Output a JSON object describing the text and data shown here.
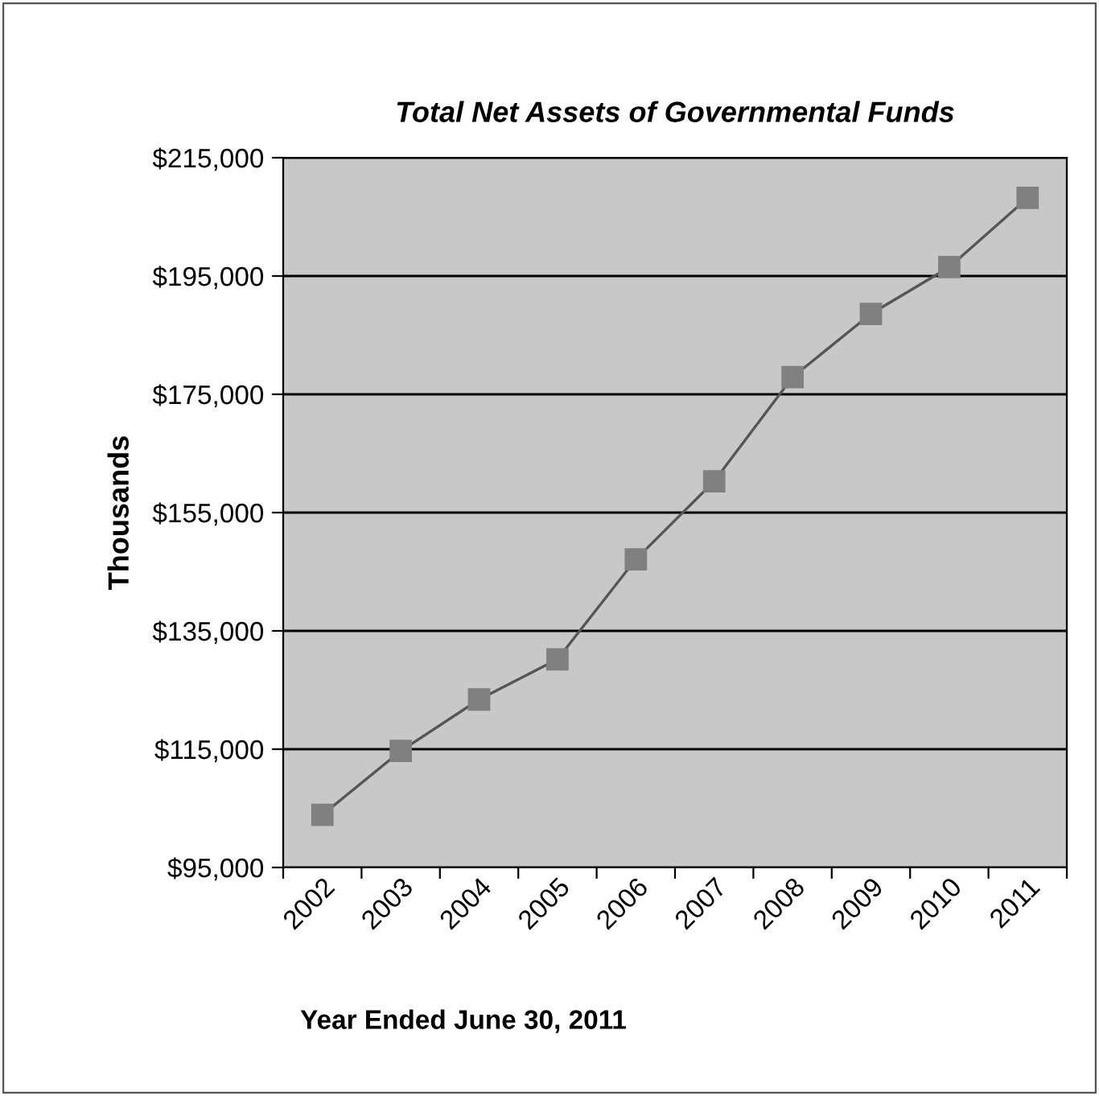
{
  "chart_data": {
    "type": "line",
    "title": "Total Net Assets of Governmental Funds",
    "xlabel": "Year Ended June 30, 2011",
    "ylabel": "Thousands",
    "categories": [
      "2002",
      "2003",
      "2004",
      "2005",
      "2006",
      "2007",
      "2008",
      "2009",
      "2010",
      "2011"
    ],
    "series": [
      {
        "color": "#808080",
        "values": [
          103900,
          114700,
          123400,
          130200,
          147100,
          160300,
          177900,
          188600,
          196500,
          208200
        ]
      }
    ],
    "ylim": [
      95000,
      215000
    ],
    "yticks": [
      {
        "value": 95000,
        "label": "$95,000"
      },
      {
        "value": 115000,
        "label": "$115,000"
      },
      {
        "value": 135000,
        "label": "$135,000"
      },
      {
        "value": 155000,
        "label": "$155,000"
      },
      {
        "value": 175000,
        "label": "$175,000"
      },
      {
        "value": 195000,
        "label": "$195,000"
      },
      {
        "value": 215000,
        "label": "$215,000"
      }
    ],
    "grid": "y",
    "legend": false,
    "marker": "square",
    "line_style": "solid"
  }
}
